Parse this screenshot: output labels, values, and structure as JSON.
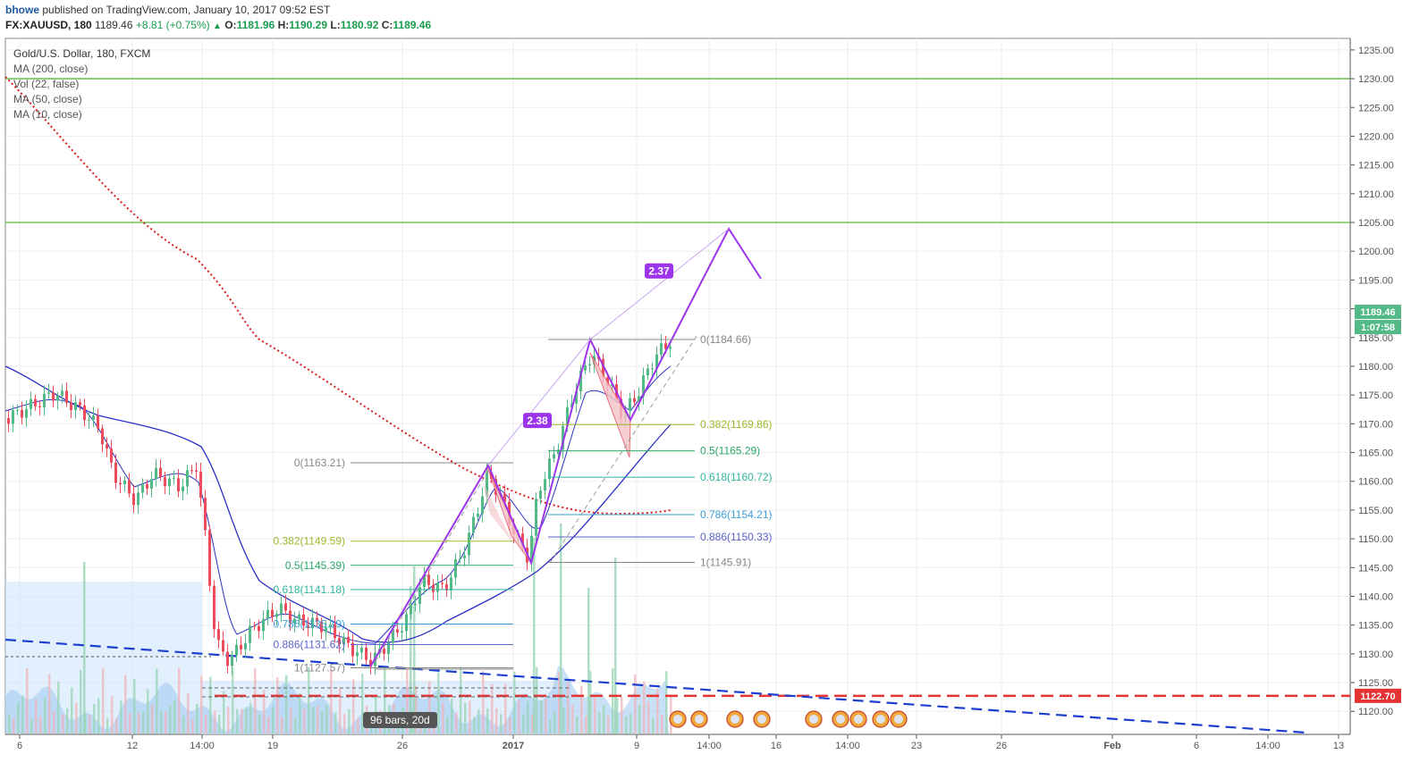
{
  "header": {
    "author": "bhowe",
    "published_text": "published on TradingView.com, January 10, 2017 09:52 EST",
    "symbol": "FX:XAUUSD, 180",
    "last": "1189.46",
    "change": "+8.81 (+0.75%)",
    "open_label": "O:",
    "open": "1181.96",
    "high_label": "H:",
    "high": "1190.29",
    "low_label": "L:",
    "low": "1180.92",
    "close_label": "C:",
    "close": "1189.46"
  },
  "legend": {
    "title": "Gold/U.S. Dollar, 180, FXCM",
    "items": [
      "MA (200, close)",
      "Vol (22, false)",
      "MA (50, close)",
      "MA (10, close)"
    ]
  },
  "range_label": "96 bars, 20d",
  "colors": {
    "up": "#53b987",
    "down": "#eb4d5c",
    "ma200": "#d81e1e",
    "ma50": "#2a2fc4",
    "purple": "#9c34eb",
    "green_line": "#5ab83c",
    "red_dash": "#e53232",
    "blue_dash": "#1c3fd0"
  },
  "chart_data": {
    "type": "candlestick",
    "ylim": [
      1116,
      1237
    ],
    "y_ticks": [
      1120,
      1125,
      1130,
      1135,
      1140,
      1145,
      1150,
      1155,
      1160,
      1165,
      1170,
      1175,
      1180,
      1185,
      1190,
      1195,
      1200,
      1205,
      1210,
      1215,
      1220,
      1225,
      1230,
      1235
    ],
    "x_ticks": [
      "6",
      "12",
      "14:00",
      "19",
      "26",
      "2017",
      "9",
      "14:00",
      "16",
      "14:00",
      "23",
      "26",
      "Feb",
      "6",
      "14:00",
      "13"
    ],
    "price_badges": [
      {
        "label": "1189.46",
        "value": 1189.46,
        "color": "#53b987"
      },
      {
        "label": "1:07:58",
        "value": 1187.0,
        "color": "#53b987"
      },
      {
        "label": "1122.70",
        "value": 1122.7,
        "color": "#e53232"
      }
    ],
    "horizontal_levels": [
      1230.0,
      1205.0,
      1122.7
    ],
    "fib_left": [
      {
        "label": "0(1163.21)",
        "value": 1163.21
      },
      {
        "label": "0.382(1149.59)",
        "value": 1149.59
      },
      {
        "label": "0.5(1145.39)",
        "value": 1145.39
      },
      {
        "label": "0.618(1141.18)",
        "value": 1141.18
      },
      {
        "label": "0.786(1135.19)",
        "value": 1135.19
      },
      {
        "label": "0.886(1131.62)",
        "value": 1131.62
      },
      {
        "label": "1(1127.57)",
        "value": 1127.57
      }
    ],
    "fib_right": [
      {
        "label": "0(1184.66)",
        "value": 1184.66
      },
      {
        "label": "0.382(1169.86)",
        "value": 1169.86
      },
      {
        "label": "0.5(1165.29)",
        "value": 1165.29
      },
      {
        "label": "0.618(1160.72)",
        "value": 1160.72
      },
      {
        "label": "0.786(1154.21)",
        "value": 1154.21
      },
      {
        "label": "0.886(1150.33)",
        "value": 1150.33
      },
      {
        "label": "1(1145.91)",
        "value": 1145.91
      }
    ],
    "pattern_labels": [
      {
        "label": "2.38",
        "value": 1170.5
      },
      {
        "label": "2.37",
        "value": 1196.5
      }
    ],
    "series": [
      {
        "name": "MA (200, close)"
      },
      {
        "name": "MA (50, close)"
      },
      {
        "name": "MA (10, close)"
      },
      {
        "name": "Vol (22, false)"
      }
    ]
  }
}
